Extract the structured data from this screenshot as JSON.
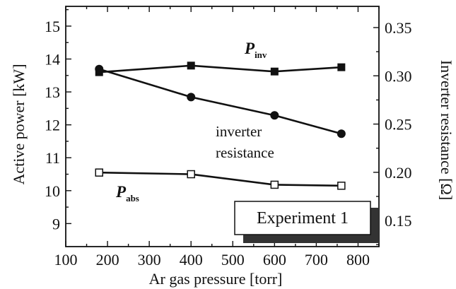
{
  "chart_data": {
    "type": "line",
    "title": "",
    "xlabel": "Ar gas pressure [torr]",
    "ylabel_left": "Active power [kW]",
    "ylabel_right": "Inverter resistance [Ω]",
    "xlim": [
      100,
      850
    ],
    "ylim_left": [
      8.3,
      15.6
    ],
    "ylim_right": [
      0.123,
      0.372
    ],
    "xticks": [
      100,
      200,
      300,
      400,
      500,
      600,
      700,
      800
    ],
    "yticks_left": [
      9,
      10,
      11,
      12,
      13,
      14,
      15
    ],
    "yticks_right": [
      0.15,
      0.2,
      0.25,
      0.3,
      0.35
    ],
    "ytick_labels_right": [
      "0.15",
      "0.20",
      "0.25",
      "0.30",
      "0.35"
    ],
    "grid": false,
    "series": [
      {
        "name": "P_inv",
        "label_main": "P",
        "label_sub": "inv",
        "axis": "left",
        "marker": "square-filled",
        "x": [
          180,
          400,
          600,
          760
        ],
        "y": [
          13.6,
          13.8,
          13.62,
          13.75
        ]
      },
      {
        "name": "inverter resistance",
        "label_lines": [
          "inverter",
          "resistance"
        ],
        "axis": "right",
        "marker": "circle-filled",
        "x": [
          180,
          400,
          600,
          760
        ],
        "y": [
          0.307,
          0.278,
          0.259,
          0.24
        ]
      },
      {
        "name": "P_abs",
        "label_main": "P",
        "label_sub": "abs",
        "axis": "left",
        "marker": "square-open",
        "x": [
          180,
          400,
          600,
          760
        ],
        "y": [
          10.55,
          10.5,
          10.18,
          10.15
        ]
      }
    ],
    "annotations": [
      "Experiment 1"
    ]
  }
}
